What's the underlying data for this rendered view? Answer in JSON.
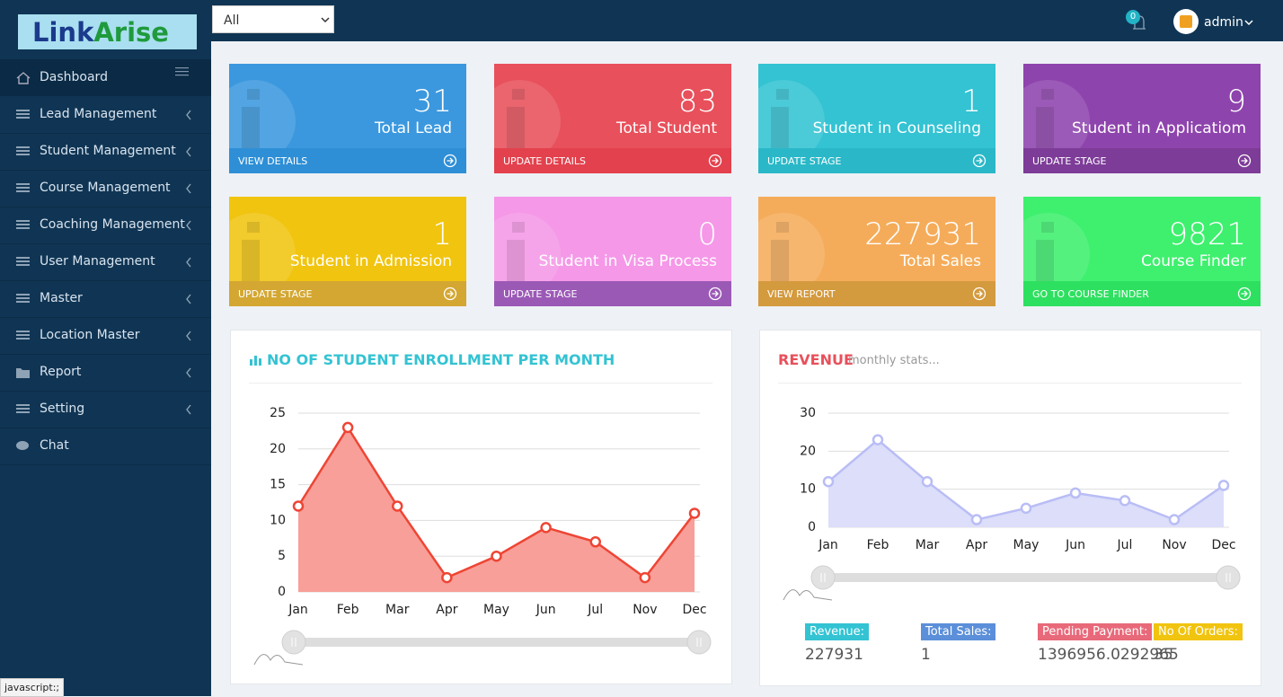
{
  "logo": [
    "Link",
    "Arise"
  ],
  "header": {
    "filter": "All",
    "notifications": 0,
    "user": "admin"
  },
  "sidebar": [
    "Dashboard",
    "Lead Management",
    "Student Management",
    "Course Management",
    "Coaching Management",
    "User Management",
    "Master",
    "Location Master",
    "Report",
    "Setting",
    "Chat"
  ],
  "cards": [
    {
      "value": 31,
      "label": "Total Lead",
      "link": "VIEW DETAILS",
      "color": "#3b98de",
      "footer_color": "#2e8fd6"
    },
    {
      "value": 83,
      "label": "Total Student",
      "link": "UPDATE DETAILS",
      "color": "#e8505b",
      "footer_color": "#e3414d"
    },
    {
      "value": 1,
      "label": "Student in Counseling",
      "link": "UPDATE STAGE",
      "color": "#33c3d3",
      "footer_color": "#2ab8c8"
    },
    {
      "value": 9,
      "label": "Student in Applicatiom",
      "link": "UPDATE STAGE",
      "color": "#8e44ad",
      "footer_color": "#7d3c98"
    },
    {
      "value": 1,
      "label": "Student in Admission",
      "link": "UPDATE STAGE",
      "color": "#f1c40f",
      "footer_color": "#d4a732"
    },
    {
      "value": 0,
      "label": "Student in Visa Process",
      "link": "UPDATE STAGE",
      "color": "#f598e8",
      "footer_color": "#9b59b6"
    },
    {
      "value": 227931,
      "label": "Total Sales",
      "link": "VIEW REPORT",
      "color": "#f5ac5a",
      "footer_color": "#d49a3e"
    },
    {
      "value": 9821,
      "label": "Course Finder",
      "link": "GO TO COURSE FINDER",
      "color": "#3ef06e",
      "footer_color": "#2ee060"
    }
  ],
  "enrollment_chart": {
    "type": "area",
    "title": "NO OF STUDENT ENROLLMENT PER MONTH",
    "categories": [
      "Jan",
      "Feb",
      "Mar",
      "Apr",
      "May",
      "Jun",
      "Jul",
      "Nov",
      "Dec"
    ],
    "values": [
      12,
      23,
      12,
      2,
      5,
      9,
      7,
      2,
      11
    ],
    "ylim": [
      0,
      25
    ],
    "yticks": [
      0,
      5,
      10,
      15,
      20,
      25
    ],
    "color": "#ee4535",
    "fill": "#f79f98"
  },
  "revenue_chart": {
    "type": "area",
    "title": "REVENUE",
    "subtitle": "monthly stats...",
    "categories": [
      "Jan",
      "Feb",
      "Mar",
      "Apr",
      "May",
      "Jun",
      "Jul",
      "Nov",
      "Dec"
    ],
    "values": [
      12,
      23,
      12,
      2,
      5,
      9,
      7,
      2,
      11
    ],
    "ylim": [
      0,
      30
    ],
    "yticks": [
      0,
      10,
      20,
      30
    ],
    "color": "#b9bdf5",
    "fill": "#dcdefa"
  },
  "revenue_summary": [
    {
      "label": "Revenue:",
      "value": 227931,
      "color": "#33c3d3"
    },
    {
      "label": "Total Sales:",
      "value": 1,
      "color": "#5b8fd9"
    },
    {
      "label": "Pending Payment:",
      "value": 1396956.0292965,
      "color": "#e8697a"
    },
    {
      "label": "No Of Orders:",
      "value": 35,
      "color": "#f1c40f"
    }
  ],
  "status_bar": "javascript:;"
}
